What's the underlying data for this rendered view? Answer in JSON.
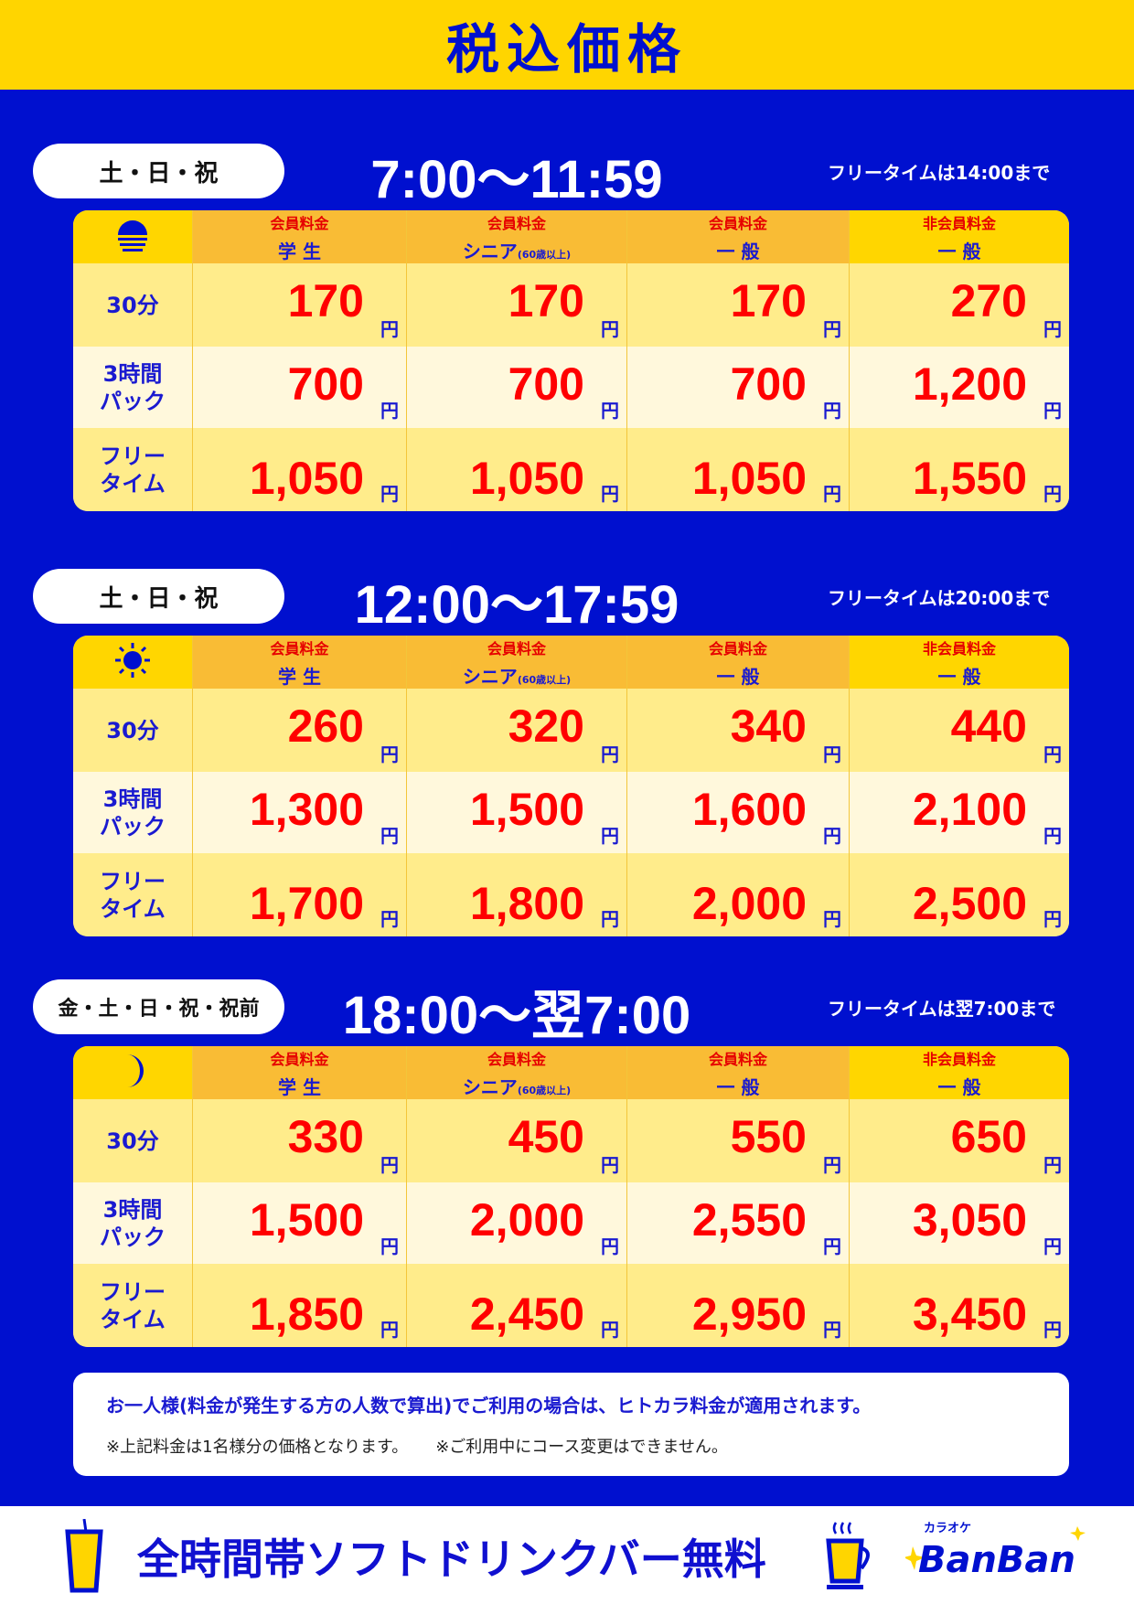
{
  "title": "税込価格",
  "colors": {
    "blue": "#0010cf",
    "yellow": "#ffd500",
    "red": "#ff0000"
  },
  "columns": [
    {
      "top": "",
      "bottom": ""
    },
    {
      "top": "会員料金",
      "bottom": "学 生"
    },
    {
      "top": "会員料金",
      "bottom": "シニア",
      "note": "(60歳以上)"
    },
    {
      "top": "会員料金",
      "bottom": "一 般"
    },
    {
      "top": "非会員料金",
      "bottom": "一 般"
    }
  ],
  "row_labels": [
    "30分",
    "3時間\nパック",
    "フリー\nタイム"
  ],
  "yen": "円",
  "sections": [
    {
      "days": "土・日・祝",
      "time": "7:00〜11:59",
      "freetime_note": "フリータイムは14:00まで",
      "icon": "sunrise-icon",
      "prices": [
        [
          "170",
          "170",
          "170",
          "270"
        ],
        [
          "700",
          "700",
          "700",
          "1,200"
        ],
        [
          "1,050",
          "1,050",
          "1,050",
          "1,550"
        ]
      ]
    },
    {
      "days": "土・日・祝",
      "time": "12:00〜17:59",
      "freetime_note": "フリータイムは20:00まで",
      "icon": "sun-icon",
      "prices": [
        [
          "260",
          "320",
          "340",
          "440"
        ],
        [
          "1,300",
          "1,500",
          "1,600",
          "2,100"
        ],
        [
          "1,700",
          "1,800",
          "2,000",
          "2,500"
        ]
      ]
    },
    {
      "days": "金・土・日・祝・祝前",
      "time": "18:00〜翌7:00",
      "freetime_note": "フリータイムは翌7:00まで",
      "icon": "moon-icon",
      "prices": [
        [
          "330",
          "450",
          "550",
          "650"
        ],
        [
          "1,500",
          "2,000",
          "2,550",
          "3,050"
        ],
        [
          "1,850",
          "2,450",
          "2,950",
          "3,450"
        ]
      ]
    }
  ],
  "notes": {
    "main": "お一人様(料金が発生する方の人数で算出)でご利用の場合は、ヒトカラ料金が適用されます。",
    "sub1": "※上記料金は1名様分の価格となります。",
    "sub2": "※ご利用中にコース変更はできません。"
  },
  "footer": {
    "text": "全時間帯ソフトドリンクバー無料",
    "logo_small": "カラオケ",
    "logo": "BanBan"
  }
}
